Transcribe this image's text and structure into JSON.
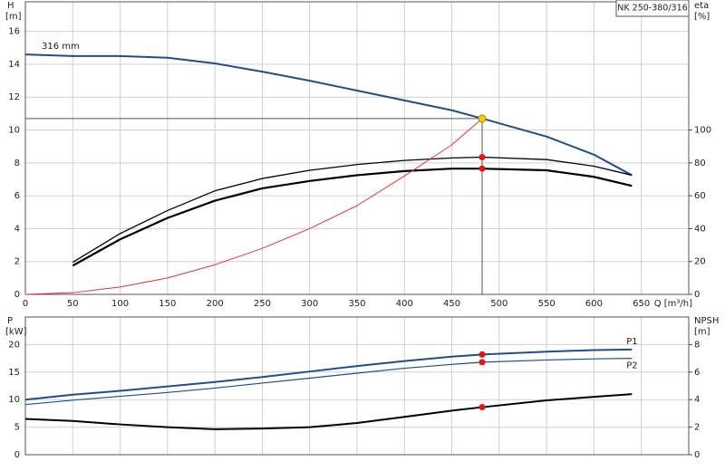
{
  "chart_data": [
    {
      "type": "line",
      "title": "NK 250-380/316",
      "ylabel": "H",
      "yunit": "[m]",
      "y2label": "eta",
      "y2unit": "[%]",
      "xlabel": "Q [m³/h]",
      "xlim": [
        0,
        700
      ],
      "xticks": [
        0,
        50,
        100,
        150,
        200,
        250,
        300,
        350,
        400,
        450,
        500,
        550,
        600,
        650
      ],
      "ylim": [
        0,
        17.8
      ],
      "yticks": [
        0,
        2,
        4,
        6,
        8,
        10,
        12,
        14,
        16
      ],
      "y2lim": [
        0,
        178
      ],
      "y2ticks": [
        0,
        20,
        40,
        60,
        80,
        100
      ],
      "grid": true,
      "series": [
        {
          "name": "316 mm",
          "color": "#1f4e8c",
          "width": 2,
          "x": [
            0,
            50,
            100,
            150,
            200,
            250,
            300,
            350,
            400,
            450,
            482,
            550,
            600,
            640
          ],
          "values": [
            14.6,
            14.5,
            14.5,
            14.4,
            14.05,
            13.55,
            13.0,
            12.4,
            11.8,
            11.2,
            10.7,
            9.6,
            8.5,
            7.25
          ]
        },
        {
          "color": "#000000",
          "width": 1.3,
          "axis": "y2",
          "x": [
            50,
            100,
            150,
            200,
            250,
            300,
            350,
            400,
            450,
            482,
            550,
            600,
            640
          ],
          "values": [
            19.5,
            37,
            51,
            63,
            70.5,
            75.5,
            79,
            81.5,
            83,
            83.5,
            82,
            78,
            72.5
          ]
        },
        {
          "color": "#000000",
          "width": 2.2,
          "axis": "y2",
          "x": [
            50,
            100,
            150,
            200,
            250,
            300,
            350,
            400,
            450,
            482,
            550,
            600,
            640
          ],
          "values": [
            17.5,
            33.5,
            46.5,
            57,
            64.5,
            69,
            72.5,
            75,
            76.5,
            76.5,
            75.5,
            71.5,
            66
          ]
        },
        {
          "color": "#e83030",
          "width": 1,
          "x": [
            0,
            50,
            100,
            150,
            200,
            250,
            300,
            350,
            400,
            450,
            482
          ],
          "values": [
            0,
            0.1,
            0.45,
            1.0,
            1.8,
            2.8,
            4.0,
            5.4,
            7.2,
            9.1,
            10.7
          ]
        }
      ],
      "points": [
        {
          "x": 482,
          "y": 10.7,
          "color": "#ffcc00"
        },
        {
          "x": 482,
          "y": 83.5,
          "axis": "y2",
          "color": "#ee1111"
        },
        {
          "x": 482,
          "y": 76.5,
          "axis": "y2",
          "color": "#ee1111"
        }
      ]
    },
    {
      "type": "line",
      "ylabel": "P",
      "yunit": "[kW]",
      "y2label": "NPSH",
      "y2unit": "[m]",
      "xlim": [
        0,
        700
      ],
      "xticks": [
        0,
        50,
        100,
        150,
        200,
        250,
        300,
        350,
        400,
        450,
        500,
        550,
        600,
        650
      ],
      "ylim": [
        0,
        25
      ],
      "yticks": [
        0,
        5,
        10,
        15,
        20
      ],
      "y2lim": [
        0,
        10
      ],
      "y2ticks": [
        0,
        2,
        4,
        6,
        8
      ],
      "grid": true,
      "series": [
        {
          "name": "P1",
          "color": "#1f4e8c",
          "width": 2,
          "x": [
            0,
            50,
            100,
            150,
            200,
            250,
            300,
            350,
            400,
            450,
            482,
            550,
            600,
            640
          ],
          "values": [
            10,
            10.9,
            11.6,
            12.4,
            13.2,
            14.1,
            15.1,
            16.1,
            17.0,
            17.8,
            18.2,
            18.7,
            19.0,
            19.1
          ]
        },
        {
          "name": "P2",
          "color": "#1f4e8c",
          "width": 1.2,
          "x": [
            0,
            50,
            100,
            150,
            200,
            250,
            300,
            350,
            400,
            450,
            482,
            550,
            600,
            640
          ],
          "values": [
            9.1,
            9.9,
            10.6,
            11.3,
            12.1,
            13.0,
            13.9,
            14.8,
            15.7,
            16.4,
            16.8,
            17.2,
            17.4,
            17.5
          ]
        },
        {
          "color": "#000000",
          "width": 2,
          "axis": "y2",
          "x": [
            0,
            50,
            100,
            150,
            200,
            250,
            300,
            350,
            400,
            450,
            482,
            550,
            600,
            640
          ],
          "values": [
            2.6,
            2.45,
            2.2,
            2.0,
            1.85,
            1.9,
            2.0,
            2.3,
            2.75,
            3.2,
            3.45,
            3.95,
            4.2,
            4.4
          ]
        }
      ],
      "points": [
        {
          "x": 482,
          "y": 18.2,
          "color": "#ee1111"
        },
        {
          "x": 482,
          "y": 16.8,
          "color": "#ee1111"
        },
        {
          "x": 482,
          "y": 3.45,
          "axis": "y2",
          "color": "#ee1111"
        }
      ]
    }
  ]
}
